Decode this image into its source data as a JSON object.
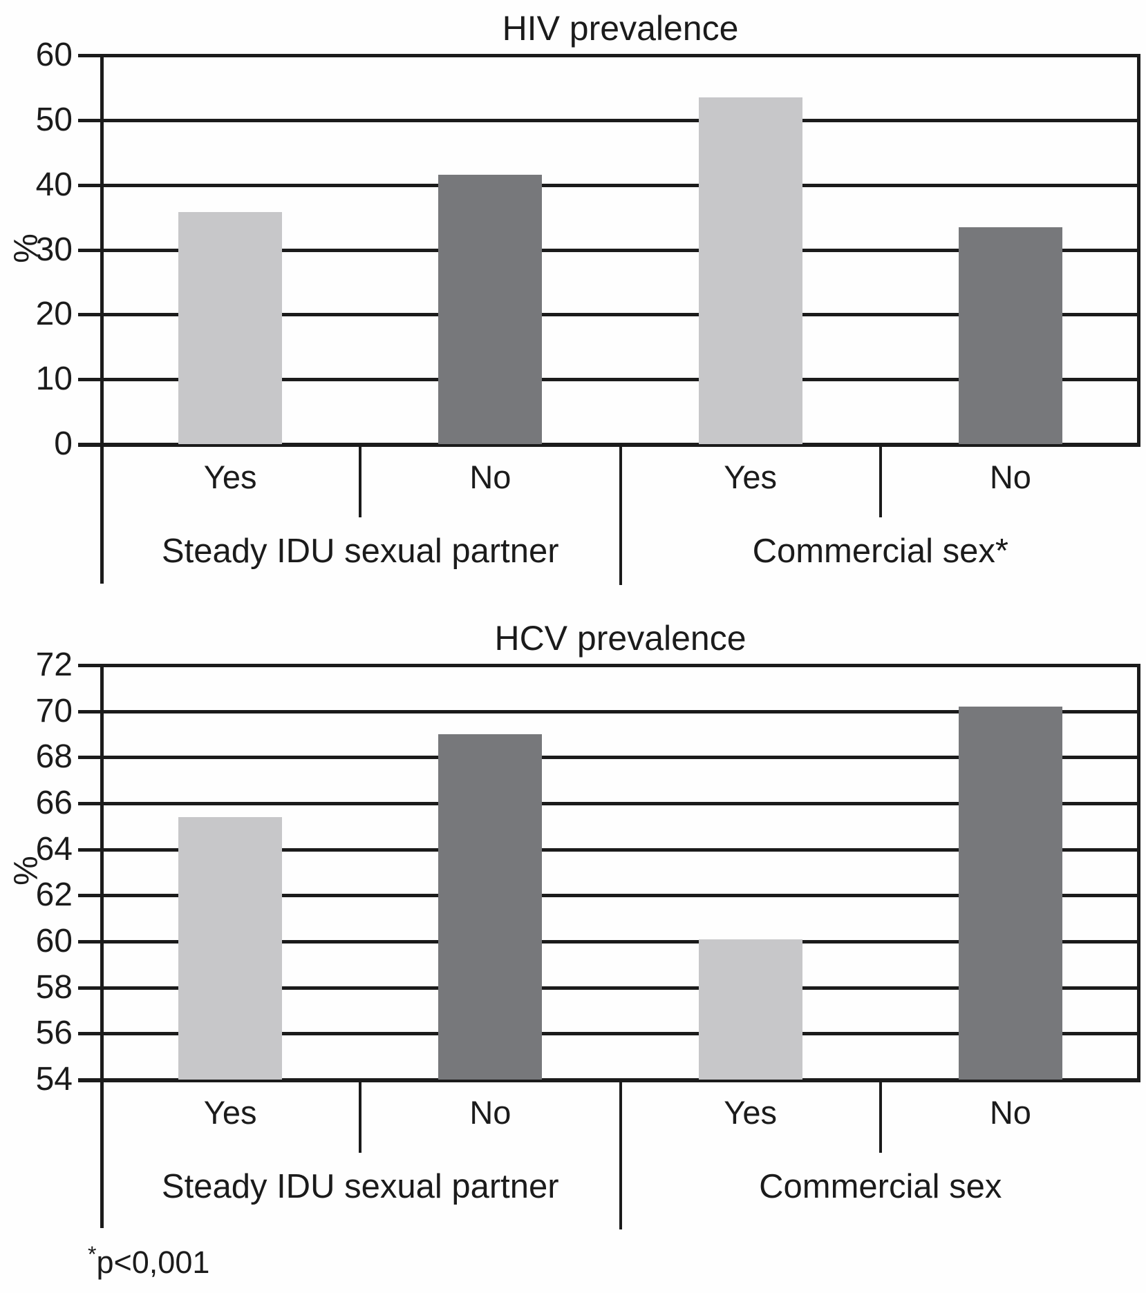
{
  "figure": {
    "footnote_star": "*",
    "footnote_text": "p<0,001"
  },
  "colors": {
    "light_bar": "#c7c7c9",
    "dark_bar": "#77787b",
    "line": "#1b1b1b",
    "text": "#1b1b1b",
    "background": "#fefefe"
  },
  "chart_data": [
    {
      "type": "bar",
      "title": "HIV prevalence",
      "ylabel": "%",
      "ylim": [
        0,
        60
      ],
      "yticks": [
        0,
        10,
        20,
        30,
        40,
        50,
        60
      ],
      "grid": true,
      "legend": "none",
      "categories": [
        "Yes",
        "No",
        "Yes",
        "No"
      ],
      "values": [
        35.8,
        41.6,
        53.5,
        33.5
      ],
      "bar_shades": [
        "light",
        "dark",
        "light",
        "dark"
      ],
      "groups": [
        {
          "label": "Steady IDU sexual partner",
          "categories": [
            "Yes",
            "No"
          ],
          "values": [
            35.8,
            41.6
          ]
        },
        {
          "label": "Commercial sex*",
          "categories": [
            "Yes",
            "No"
          ],
          "values": [
            53.5,
            33.5
          ]
        }
      ]
    },
    {
      "type": "bar",
      "title": "HCV prevalence",
      "ylabel": "%",
      "ylim": [
        54,
        72
      ],
      "yticks": [
        54,
        56,
        58,
        60,
        62,
        64,
        66,
        68,
        70,
        72
      ],
      "grid": true,
      "legend": "none",
      "categories": [
        "Yes",
        "No",
        "Yes",
        "No"
      ],
      "values": [
        65.4,
        69.0,
        60.1,
        70.2
      ],
      "bar_shades": [
        "light",
        "dark",
        "light",
        "dark"
      ],
      "groups": [
        {
          "label": "Steady IDU sexual partner",
          "categories": [
            "Yes",
            "No"
          ],
          "values": [
            65.4,
            69.0
          ]
        },
        {
          "label": "Commercial sex",
          "categories": [
            "Yes",
            "No"
          ],
          "values": [
            60.1,
            70.2
          ]
        }
      ]
    }
  ]
}
